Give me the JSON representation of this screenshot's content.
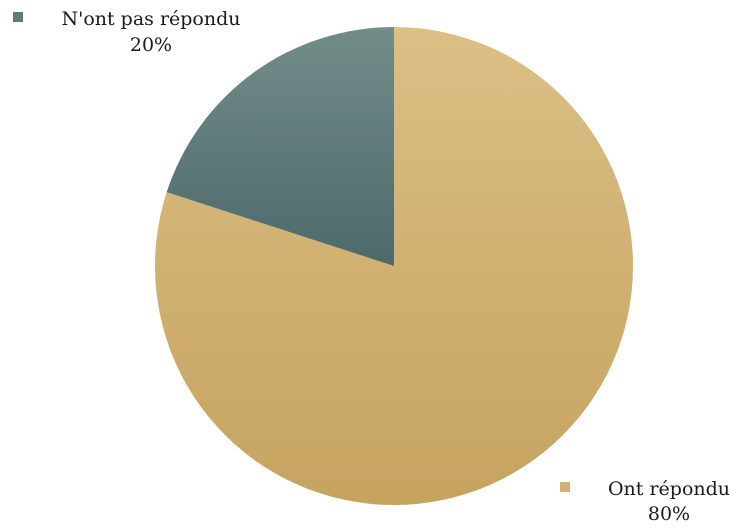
{
  "chart_data": {
    "type": "pie",
    "title": "",
    "slices": [
      {
        "label": "Ont répondu",
        "value": 80,
        "value_label": "80%",
        "color": "#d4b06f"
      },
      {
        "label": "N'ont pas répondu",
        "value": 20,
        "value_label": "20%",
        "color": "#5f7c7c"
      }
    ],
    "start_angle_deg": 0,
    "direction": "clockwise",
    "legend": "outside-labels"
  }
}
